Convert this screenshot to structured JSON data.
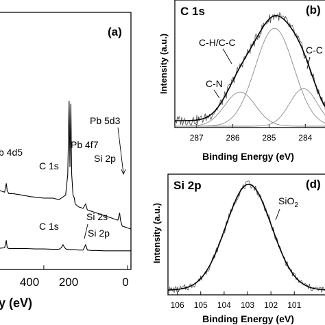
{
  "panel_a": {
    "label": "(a)",
    "xlabel_fragment": "y (eV)",
    "annotations": {
      "pb4d5": "b 4d5",
      "pb4f7": "Pb 4f7",
      "pb5d3": "Pb 5d3",
      "c1s_top": "C 1s",
      "si2p_top": "Si 2p",
      "c1s_bottom": "C 1s",
      "si2s_bottom": "Si 2s",
      "si2p_bottom": "Si 2p"
    }
  },
  "panel_b": {
    "label": "(b)",
    "title": "C 1s",
    "xlabel": "Binding Energy (eV)",
    "ylabel": "Intensity (a.u.)",
    "annotations": {
      "ch_cc": "C-H/C-C",
      "cn": "C-N",
      "cc": "C-C"
    }
  },
  "panel_d": {
    "label": "(d)",
    "title": "Si 2p",
    "xlabel": "Binding Energy (eV)",
    "ylabel": "Intensity (a.u.)",
    "annotation_base": "SiO",
    "annotation_sub": "2"
  },
  "chart_data": [
    {
      "type": "line",
      "panel": "a",
      "xlim": [
        0,
        450
      ],
      "xaxis_reversed": true,
      "x_tick_labels": [
        "400",
        "200",
        "0"
      ],
      "series": [
        {
          "x": [
            450,
            440,
            435,
            430,
            425,
            420,
            415,
            412,
            410,
            405,
            400,
            390,
            380,
            360,
            340,
            320,
            300,
            290,
            286,
            284,
            280,
            270,
            250,
            230,
            200,
            180,
            165,
            160,
            150,
            145,
            142,
            140,
            138,
            136,
            133,
            130,
            128,
            120,
            110,
            104,
            100,
            90,
            80,
            60,
            40,
            30,
            26,
            24,
            20,
            10,
            0
          ],
          "y": [
            0.62,
            0.6,
            0.66,
            0.58,
            0.57,
            0.64,
            0.66,
            0.56,
            0.55,
            0.52,
            0.5,
            0.48,
            0.46,
            0.44,
            0.42,
            0.4,
            0.39,
            0.38,
            0.44,
            0.39,
            0.37,
            0.37,
            0.36,
            0.35,
            0.34,
            0.34,
            0.33,
            0.34,
            0.36,
            0.5,
            1.0,
            0.55,
            0.98,
            0.5,
            0.36,
            0.34,
            0.3,
            0.28,
            0.27,
            0.3,
            0.26,
            0.25,
            0.24,
            0.22,
            0.2,
            0.19,
            0.24,
            0.19,
            0.15,
            0.14,
            0.13
          ]
        },
        {
          "x": [
            450,
            430,
            400,
            380,
            350,
            320,
            300,
            290,
            286,
            284,
            280,
            260,
            240,
            220,
            200,
            180,
            165,
            160,
            156,
            152,
            148,
            140,
            130,
            120,
            110,
            104,
            100,
            90,
            80,
            60,
            40,
            20,
            10,
            0
          ],
          "y": [
            0.07,
            0.07,
            0.065,
            0.06,
            0.06,
            0.055,
            0.055,
            0.06,
            0.16,
            0.06,
            0.05,
            0.05,
            0.05,
            0.045,
            0.045,
            0.04,
            0.04,
            0.06,
            0.1,
            0.06,
            0.04,
            0.035,
            0.035,
            0.03,
            0.03,
            0.1,
            0.03,
            0.025,
            0.025,
            0.02,
            0.02,
            0.02,
            0.02,
            0.02
          ]
        }
      ]
    },
    {
      "type": "line",
      "panel": "b",
      "title": "C 1s",
      "xlabel": "Binding Energy (eV)",
      "ylabel": "Intensity (a.u.)",
      "xlim": [
        287.6,
        283.4
      ],
      "x_ticks": [
        287,
        286,
        285,
        284
      ],
      "x_tick_labels": [
        "287",
        "286",
        "285",
        "284"
      ],
      "components": [
        {
          "name": "C-H/C-C",
          "center": 284.85,
          "height": 0.86,
          "fwhm": 1.25
        },
        {
          "name": "C-N",
          "center": 285.8,
          "height": 0.3,
          "fwhm": 1.0
        },
        {
          "name": "C-C",
          "center": 284.05,
          "height": 0.33,
          "fwhm": 0.9
        }
      ],
      "background": 0.06
    },
    {
      "type": "line",
      "panel": "d",
      "title": "Si 2p",
      "xlabel": "Binding Energy (eV)",
      "ylabel": "Intensity (a.u.)",
      "xlim": [
        106.4,
        99.6
      ],
      "x_ticks": [
        106,
        105,
        104,
        103,
        102,
        101
      ],
      "x_tick_labels": [
        "106",
        "105",
        "104",
        "103",
        "102",
        "101"
      ],
      "components": [
        {
          "name": "SiO2",
          "center": 102.95,
          "height": 0.92,
          "fwhm": 2.3
        }
      ],
      "background": 0.04
    }
  ]
}
